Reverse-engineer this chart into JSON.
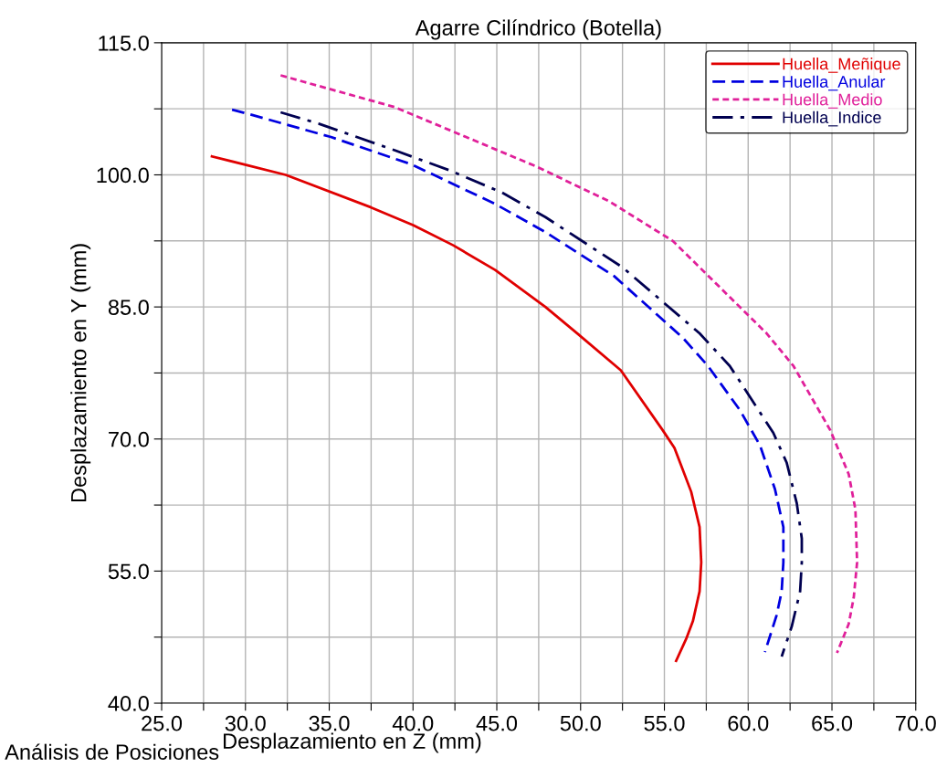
{
  "chart_data": {
    "type": "line",
    "title": "Agarre Cilíndrico (Botella)",
    "xlabel": "Desplazamiento en Z (mm)",
    "ylabel": "Desplazamiento en Y (mm)",
    "annotations": [
      "Análisis de Posiciones"
    ],
    "xlim": [
      25,
      70
    ],
    "ylim": [
      40,
      115
    ],
    "xticks": [
      {
        "value": 25,
        "label": "25.0"
      },
      {
        "value": 27.5,
        "label": null
      },
      {
        "value": 30,
        "label": "30.0"
      },
      {
        "value": 32.5,
        "label": null
      },
      {
        "value": 35,
        "label": "35.0"
      },
      {
        "value": 37.5,
        "label": null
      },
      {
        "value": 40,
        "label": "40.0"
      },
      {
        "value": 42.5,
        "label": null
      },
      {
        "value": 45,
        "label": "45.0"
      },
      {
        "value": 47.5,
        "label": null
      },
      {
        "value": 50,
        "label": "50.0"
      },
      {
        "value": 52.5,
        "label": null
      },
      {
        "value": 55,
        "label": "55.0"
      },
      {
        "value": 57.5,
        "label": null
      },
      {
        "value": 60,
        "label": "60.0"
      },
      {
        "value": 62.5,
        "label": null
      },
      {
        "value": 65,
        "label": "65.0"
      },
      {
        "value": 67.5,
        "label": null
      },
      {
        "value": 70,
        "label": "70.0"
      }
    ],
    "yticks": [
      {
        "value": 40,
        "label": "40.0"
      },
      {
        "value": 47.5,
        "label": null
      },
      {
        "value": 55,
        "label": "55.0"
      },
      {
        "value": 62.5,
        "label": null
      },
      {
        "value": 70,
        "label": "70.0"
      },
      {
        "value": 77.5,
        "label": null
      },
      {
        "value": 85,
        "label": "85.0"
      },
      {
        "value": 92.5,
        "label": null
      },
      {
        "value": 100,
        "label": "100.0"
      },
      {
        "value": 107.5,
        "label": null
      },
      {
        "value": 115,
        "label": "115.0"
      }
    ],
    "grid": true,
    "legend": "top right",
    "marker": "none",
    "series": [
      {
        "name": "Huella_Meñique",
        "color": "#e00000",
        "line_style": "solid",
        "x": [
          28.0,
          32.4,
          37.5,
          40.0,
          42.4,
          44.9,
          47.9,
          49.8,
          52.4,
          54.9,
          55.6,
          56.6,
          57.1,
          57.2,
          57.1,
          56.7,
          56.3,
          55.7
        ],
        "values": [
          102.1,
          100.0,
          96.3,
          94.3,
          92.0,
          89.2,
          85.0,
          82.0,
          77.8,
          71.0,
          69.0,
          64.0,
          60.0,
          56.0,
          52.7,
          49.3,
          47.3,
          44.8
        ]
      },
      {
        "name": "Huella_Anular",
        "color": "#0000e0",
        "line_style": "dashed",
        "x": [
          29.2,
          30.4,
          35.1,
          39.9,
          44.9,
          47.9,
          52.0,
          56.1,
          57.6,
          59.5,
          60.7,
          61.6,
          62.1,
          62.1,
          62.0,
          61.7,
          61.0
        ],
        "values": [
          107.4,
          106.8,
          104.3,
          101.2,
          96.7,
          93.5,
          88.5,
          81.5,
          78.3,
          73.3,
          69.3,
          64.3,
          60.0,
          56.0,
          52.7,
          50.0,
          45.8
        ]
      },
      {
        "name": "Huella_Medio",
        "color": "#e0209a",
        "line_style": "dotted",
        "x": [
          32.1,
          38.9,
          47.3,
          51.7,
          55.5,
          61.1,
          62.7,
          64.9,
          66.0,
          66.4,
          66.5,
          66.3,
          66.0,
          65.3
        ],
        "values": [
          111.3,
          107.7,
          101.0,
          97.0,
          92.5,
          82.0,
          78.3,
          71.0,
          66.0,
          62.0,
          56.0,
          52.0,
          49.0,
          45.7
        ]
      },
      {
        "name": "Huella_Indice",
        "color": "#000050",
        "line_style": "dashdot",
        "x": [
          32.1,
          34.4,
          38.9,
          42.2,
          45.3,
          47.9,
          52.5,
          57.1,
          58.9,
          61.5,
          62.3,
          62.9,
          63.2,
          63.2,
          63.1,
          62.6,
          62.0
        ],
        "values": [
          107.1,
          105.8,
          102.8,
          100.5,
          98.0,
          95.2,
          89.5,
          82.0,
          78.3,
          70.7,
          67.3,
          62.7,
          58.7,
          56.0,
          52.7,
          48.7,
          45.3
        ]
      }
    ]
  }
}
